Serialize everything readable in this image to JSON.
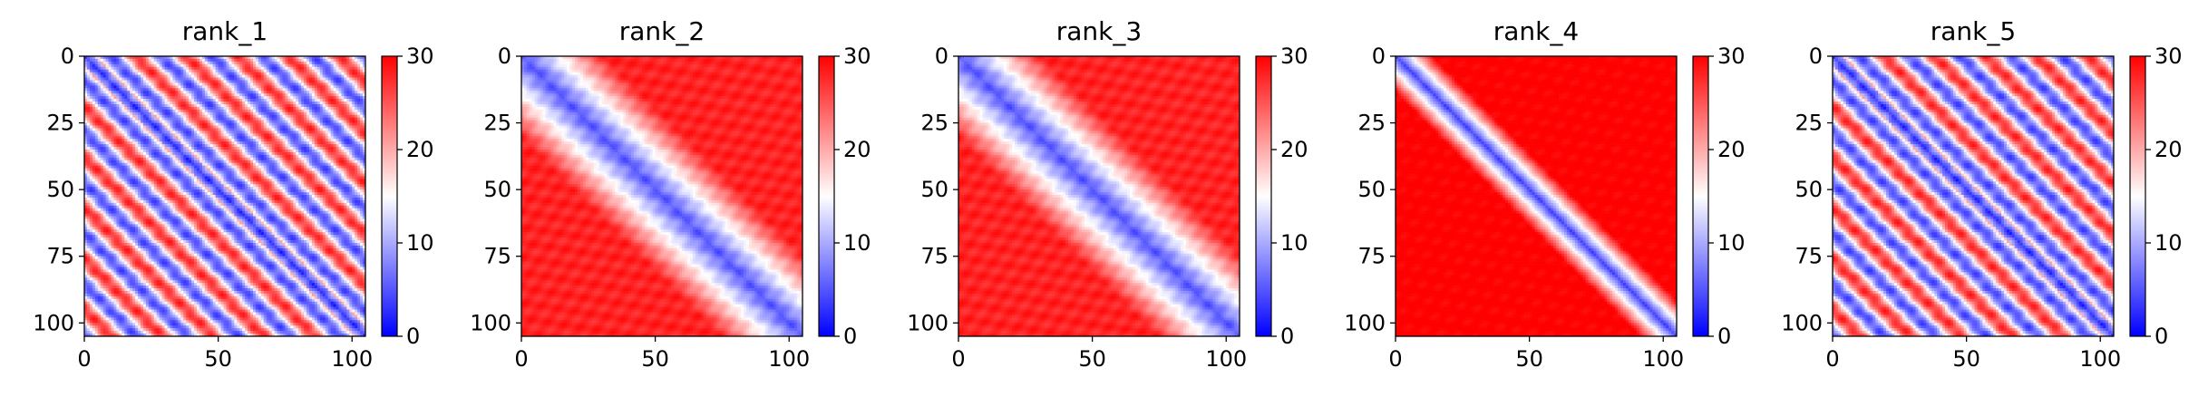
{
  "chart_data": [
    {
      "type": "heatmap",
      "title": "rank_1",
      "pattern": "striped",
      "matrix_size": 105,
      "xlim": [
        0,
        105
      ],
      "ylim": [
        105,
        0
      ],
      "xticks": [
        0,
        50,
        100
      ],
      "yticks": [
        0,
        25,
        50,
        75,
        100
      ],
      "colorbar": {
        "vmin": 0,
        "vmax": 30,
        "ticks": [
          0,
          10,
          20,
          30
        ],
        "colormap": "bwr"
      }
    },
    {
      "type": "heatmap",
      "title": "rank_2",
      "pattern": "wide-diagonal",
      "matrix_size": 105,
      "xlim": [
        0,
        105
      ],
      "ylim": [
        105,
        0
      ],
      "xticks": [
        0,
        50,
        100
      ],
      "yticks": [
        0,
        25,
        50,
        75,
        100
      ],
      "colorbar": {
        "vmin": 0,
        "vmax": 30,
        "ticks": [
          0,
          10,
          20,
          30
        ],
        "colormap": "bwr"
      }
    },
    {
      "type": "heatmap",
      "title": "rank_3",
      "pattern": "wide-diagonal",
      "matrix_size": 105,
      "xlim": [
        0,
        105
      ],
      "ylim": [
        105,
        0
      ],
      "xticks": [
        0,
        50,
        100
      ],
      "yticks": [
        0,
        25,
        50,
        75,
        100
      ],
      "colorbar": {
        "vmin": 0,
        "vmax": 30,
        "ticks": [
          0,
          10,
          20,
          30
        ],
        "colormap": "bwr"
      }
    },
    {
      "type": "heatmap",
      "title": "rank_4",
      "pattern": "narrow-diagonal",
      "matrix_size": 105,
      "xlim": [
        0,
        105
      ],
      "ylim": [
        105,
        0
      ],
      "xticks": [
        0,
        50,
        100
      ],
      "yticks": [
        0,
        25,
        50,
        75,
        100
      ],
      "colorbar": {
        "vmin": 0,
        "vmax": 30,
        "ticks": [
          0,
          10,
          20,
          30
        ],
        "colormap": "bwr"
      }
    },
    {
      "type": "heatmap",
      "title": "rank_5",
      "pattern": "striped",
      "matrix_size": 105,
      "xlim": [
        0,
        105
      ],
      "ylim": [
        105,
        0
      ],
      "xticks": [
        0,
        50,
        100
      ],
      "yticks": [
        0,
        25,
        50,
        75,
        100
      ],
      "colorbar": {
        "vmin": 0,
        "vmax": 30,
        "ticks": [
          0,
          10,
          20,
          30
        ],
        "colormap": "bwr"
      }
    }
  ],
  "colors": {
    "low": "#0000ff",
    "mid": "#ffffff",
    "high": "#ff0000"
  }
}
